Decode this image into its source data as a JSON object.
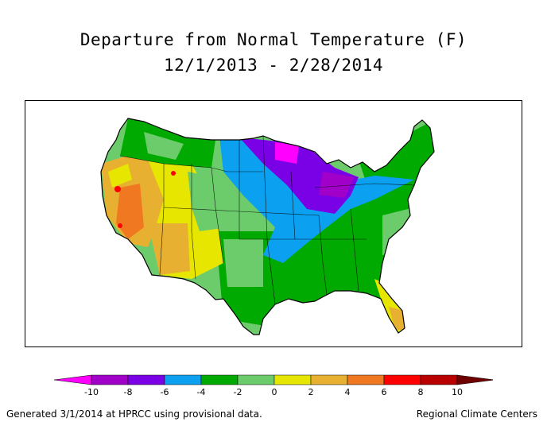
{
  "title_line1": "Departure from Normal Temperature (F)",
  "title_line2": "12/1/2013 - 2/28/2014",
  "legend": {
    "ticks": [
      "-10",
      "-8",
      "-6",
      "-4",
      "-2",
      "0",
      "2",
      "4",
      "6",
      "8",
      "10"
    ],
    "colors": [
      "#ff00ff",
      "#a000c8",
      "#7a00e6",
      "#0ca0f0",
      "#00aa00",
      "#6ccc6c",
      "#e6e600",
      "#e8b030",
      "#f07820",
      "#ff0000",
      "#b80000",
      "#6e0000"
    ]
  },
  "footer_left": "Generated 3/1/2014 at HPRCC using provisional data.",
  "footer_right": "Regional Climate Centers"
}
